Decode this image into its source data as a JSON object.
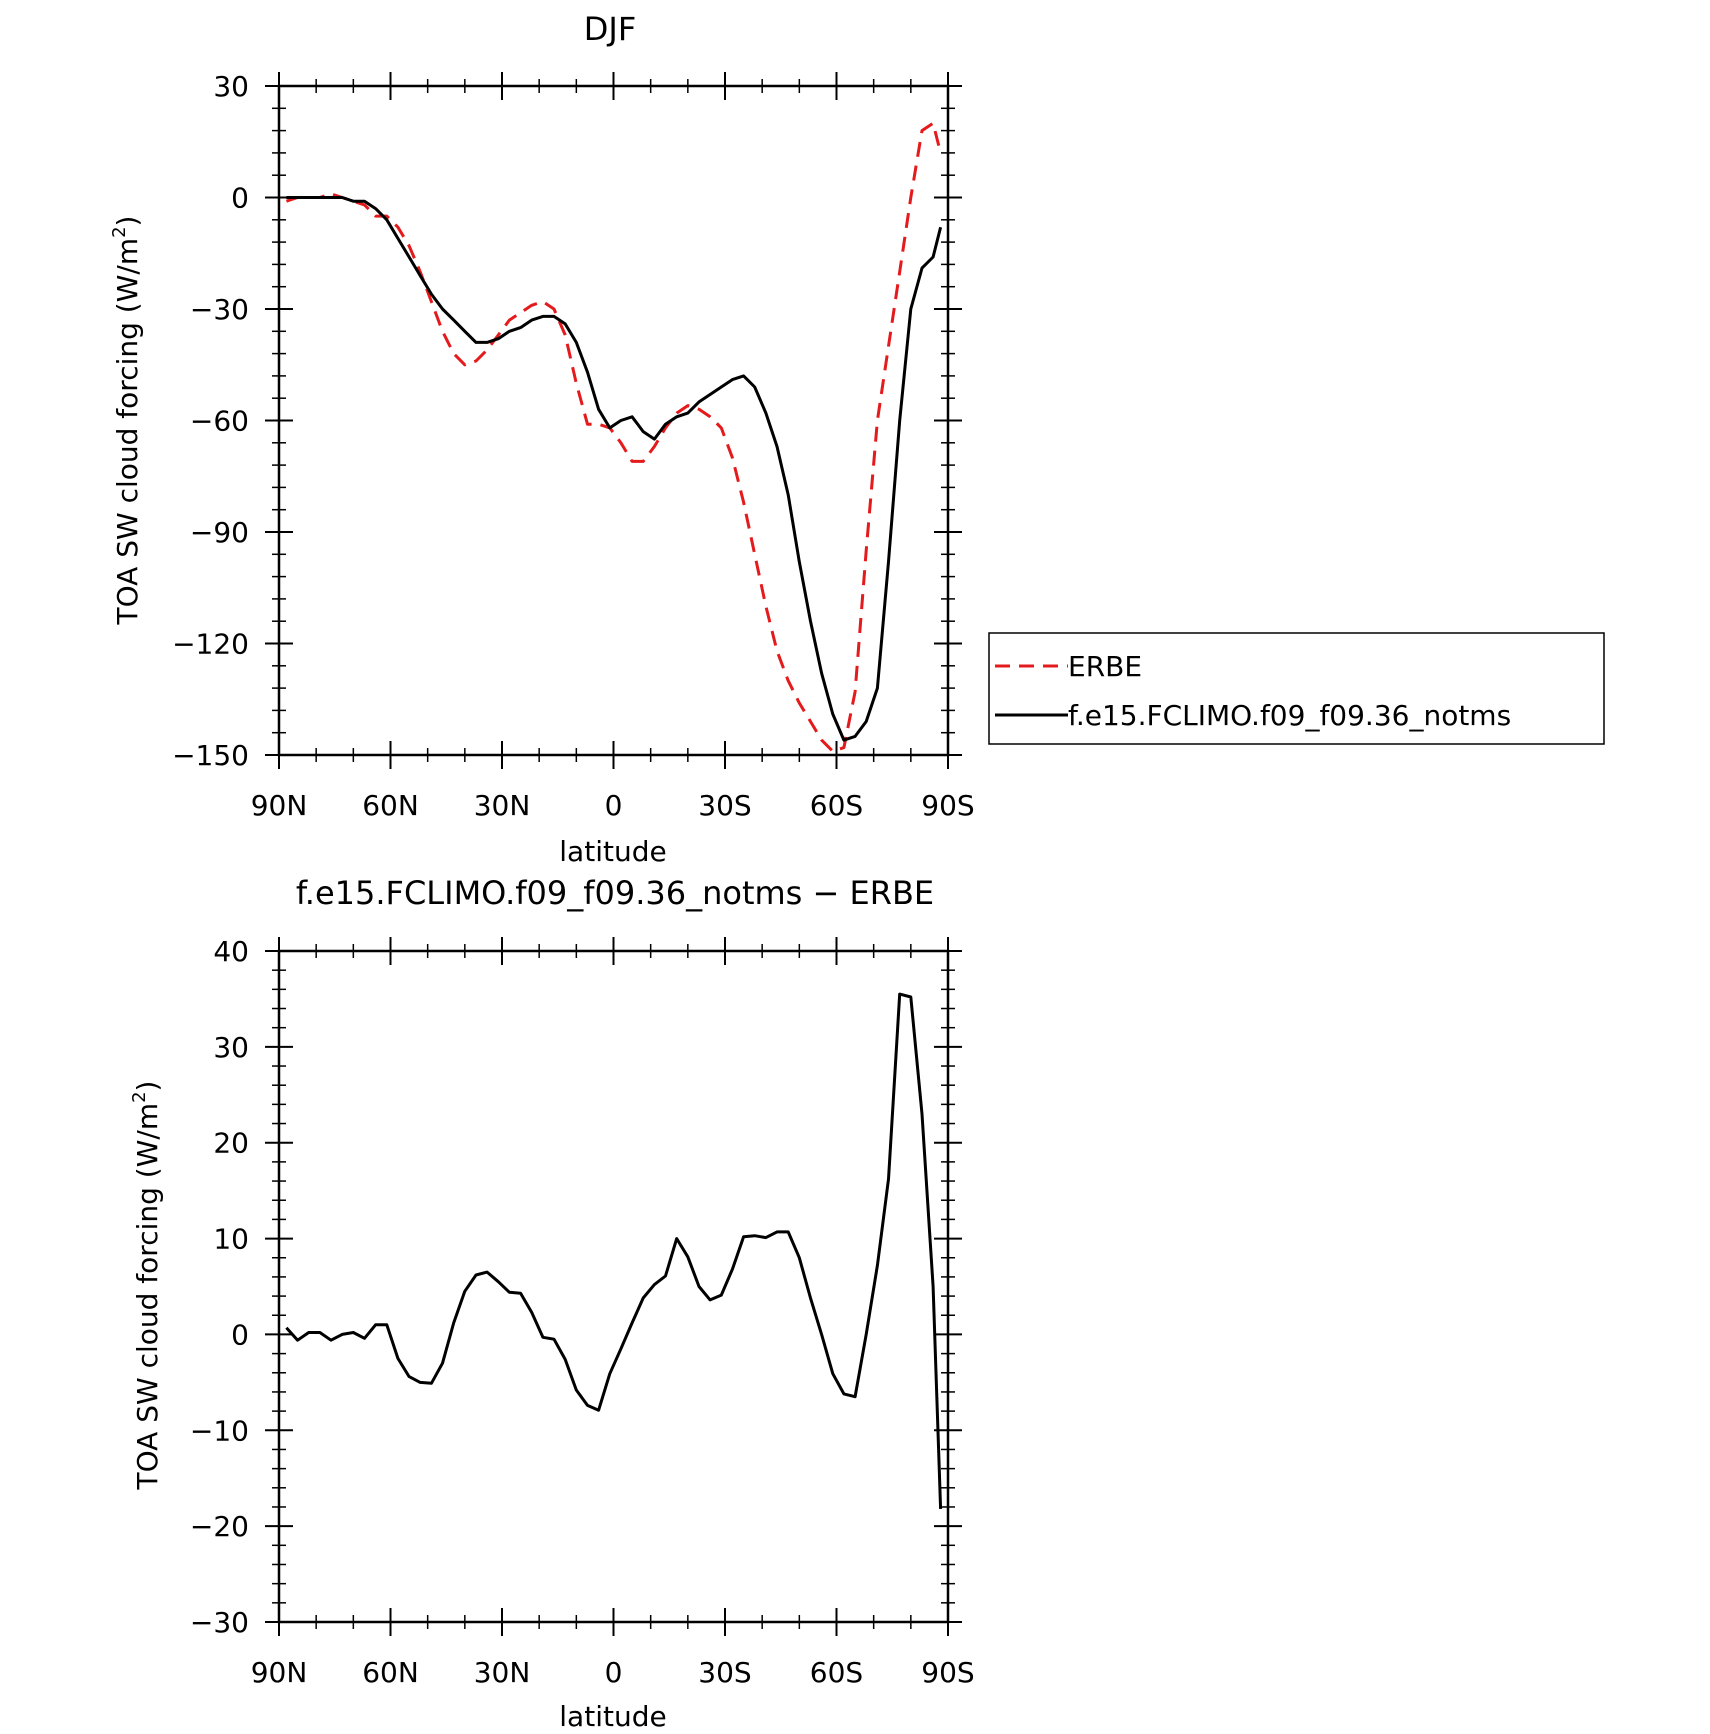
{
  "chart_data": [
    {
      "type": "line",
      "title": "DJF",
      "xlabel": "latitude",
      "ylabel_main": "TOA SW cloud forcing (W/m",
      "ylabel_sup": "2",
      "ylabel_close": ")",
      "xlim": [
        90,
        -90
      ],
      "ylim": [
        -150,
        30
      ],
      "xticks": [
        {
          "value": 90,
          "label": "90N"
        },
        {
          "value": 60,
          "label": "60N"
        },
        {
          "value": 30,
          "label": "30N"
        },
        {
          "value": 0,
          "label": "0"
        },
        {
          "value": -30,
          "label": "30S"
        },
        {
          "value": -60,
          "label": "60S"
        },
        {
          "value": -90,
          "label": "90S"
        }
      ],
      "yticks": [
        30,
        0,
        -30,
        -60,
        -90,
        -120,
        -150
      ],
      "legend_position": "right",
      "series": [
        {
          "name": "ERBE",
          "color": "#e41a1c",
          "dash": "dashed",
          "x": [
            88,
            85,
            82,
            79,
            76,
            73,
            70,
            67,
            64,
            61,
            58,
            55,
            52,
            49,
            46,
            43,
            40,
            37,
            34,
            31,
            28,
            25,
            22,
            19,
            16,
            13,
            10,
            7,
            4,
            1,
            -2,
            -5,
            -8,
            -11,
            -14,
            -17,
            -20,
            -23,
            -26,
            -29,
            -32,
            -35,
            -38,
            -41,
            -44,
            -47,
            -50,
            -53,
            -56,
            -59,
            -62,
            -65,
            -68,
            -71,
            -74,
            -77,
            -80,
            -83,
            -86,
            -88
          ],
          "y": [
            -1,
            0,
            0,
            0,
            1,
            0,
            -1,
            -2,
            -5,
            -5,
            -8,
            -13,
            -20,
            -28,
            -36,
            -42,
            -45,
            -44,
            -41,
            -37,
            -33,
            -31,
            -29,
            -28,
            -30,
            -37,
            -50,
            -61,
            -61,
            -62,
            -66,
            -71,
            -71,
            -67,
            -62,
            -58,
            -56,
            -57,
            -59,
            -62,
            -70,
            -82,
            -96,
            -110,
            -122,
            -130,
            -136,
            -141,
            -146,
            -149,
            -148,
            -133,
            -95,
            -60,
            -40,
            -20,
            0,
            18,
            20,
            12
          ]
        },
        {
          "name": "f.e15.FCLIMO.f09_f09.36_notms",
          "color": "#000000",
          "dash": "solid",
          "x": [
            88,
            85,
            82,
            79,
            76,
            73,
            70,
            67,
            64,
            61,
            58,
            55,
            52,
            49,
            46,
            43,
            40,
            37,
            34,
            31,
            28,
            25,
            22,
            19,
            16,
            13,
            10,
            7,
            4,
            1,
            -2,
            -5,
            -8,
            -11,
            -14,
            -17,
            -20,
            -23,
            -26,
            -29,
            -32,
            -35,
            -38,
            -41,
            -44,
            -47,
            -50,
            -53,
            -56,
            -59,
            -62,
            -65,
            -68,
            -71,
            -74,
            -77,
            -80,
            -83,
            -86,
            -88
          ],
          "y": [
            0,
            0,
            0,
            0,
            0,
            0,
            -1,
            -1,
            -3,
            -6,
            -11,
            -16,
            -21,
            -26,
            -30,
            -33,
            -36,
            -39,
            -39,
            -38,
            -36,
            -35,
            -33,
            -32,
            -32,
            -34,
            -39,
            -47,
            -57,
            -62,
            -60,
            -59,
            -63,
            -65,
            -61,
            -59,
            -58,
            -55,
            -53,
            -51,
            -49,
            -48,
            -51,
            -58,
            -67,
            -80,
            -98,
            -114,
            -128,
            -139,
            -146,
            -145,
            -141,
            -132,
            -98,
            -60,
            -30,
            -19,
            -16,
            -8
          ]
        }
      ]
    },
    {
      "type": "line",
      "title": "f.e15.FCLIMO.f09_f09.36_notms − ERBE",
      "xlabel": "latitude",
      "ylabel_main": "TOA SW cloud forcing (W/m",
      "ylabel_sup": "2",
      "ylabel_close": ")",
      "xlim": [
        90,
        -90
      ],
      "ylim": [
        -30,
        40
      ],
      "xticks": [
        {
          "value": 90,
          "label": "90N"
        },
        {
          "value": 60,
          "label": "60N"
        },
        {
          "value": 30,
          "label": "30N"
        },
        {
          "value": 0,
          "label": "0"
        },
        {
          "value": -30,
          "label": "30S"
        },
        {
          "value": -60,
          "label": "60S"
        },
        {
          "value": -90,
          "label": "90S"
        }
      ],
      "yticks": [
        40,
        30,
        20,
        10,
        0,
        -10,
        -20,
        -30
      ],
      "series": [
        {
          "color": "#000000",
          "dash": "solid",
          "x": [
            88,
            85,
            82,
            79,
            76,
            73,
            70,
            67,
            64,
            61,
            58,
            55,
            52,
            49,
            46,
            43,
            40,
            37,
            34,
            31,
            28,
            25,
            22,
            19,
            16,
            13,
            10,
            7,
            4,
            1,
            -2,
            -5,
            -8,
            -11,
            -14,
            -17,
            -20,
            -23,
            -26,
            -29,
            -32,
            -35,
            -38,
            -41,
            -44,
            -47,
            -50,
            -53,
            -56,
            -59,
            -62,
            -65,
            -68,
            -71,
            -74,
            -77,
            -80,
            -83,
            -86,
            -88
          ],
          "y": [
            0.7,
            -0.6,
            0.2,
            0.2,
            -0.6,
            0,
            0.2,
            -0.4,
            1.0,
            1.0,
            -2.5,
            -4.4,
            -5.0,
            -5.1,
            -3.0,
            1.2,
            4.5,
            6.2,
            6.5,
            5.5,
            4.4,
            4.3,
            2.3,
            -0.3,
            -0.5,
            -2.6,
            -5.8,
            -7.4,
            -7.9,
            -4.1,
            -1.5,
            1.2,
            3.8,
            5.2,
            6.1,
            10.0,
            8.1,
            5.0,
            3.6,
            4.1,
            6.8,
            10.2,
            10.3,
            10.1,
            10.7,
            10.7,
            8.0,
            3.8,
            0,
            -4.1,
            -6.2,
            -6.5,
            0,
            7.2,
            16.2,
            35.5,
            35.2,
            23.0,
            5.0,
            -18.2
          ]
        }
      ]
    }
  ]
}
